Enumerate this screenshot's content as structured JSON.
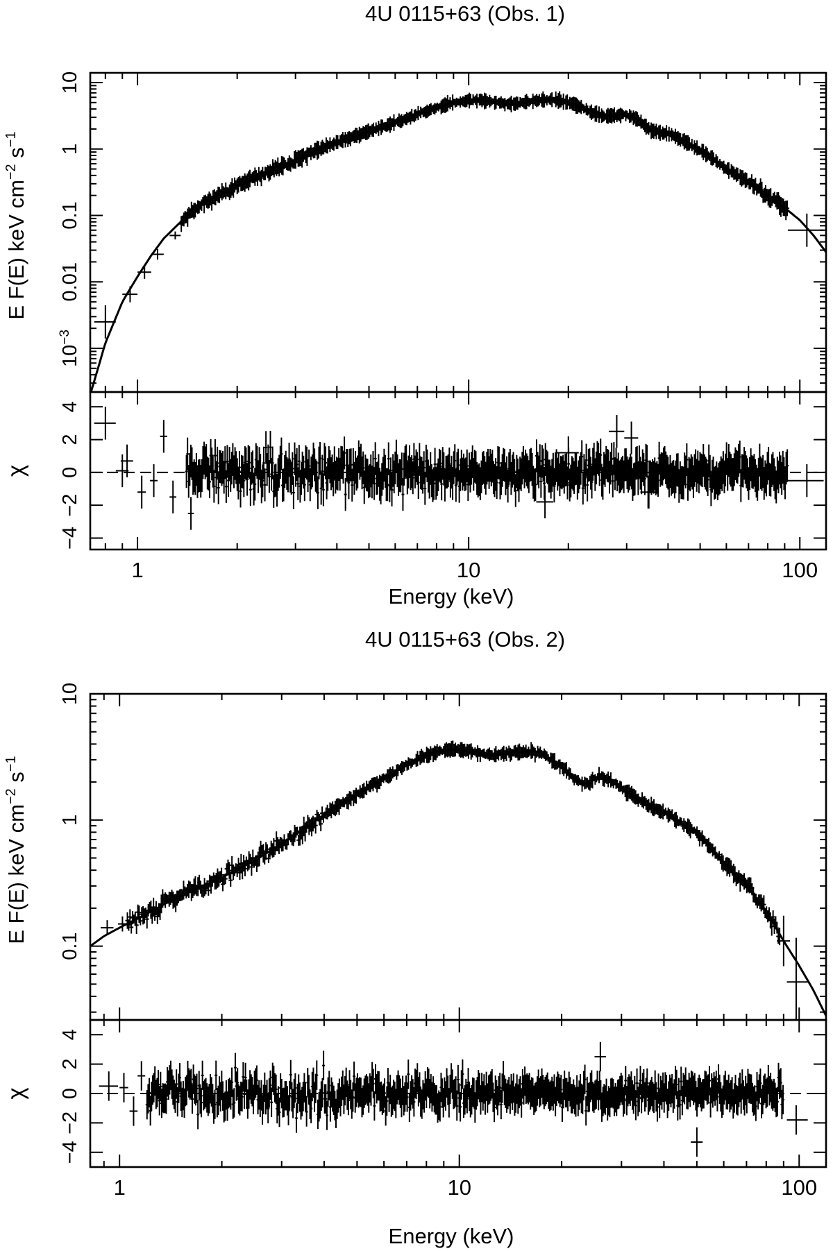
{
  "chart_data": [
    {
      "type": "line",
      "title": "4U 0115+63 (Obs. 1)",
      "xlabel": "Energy (keV)",
      "xscale": "log",
      "xlim": [
        0.72,
        120
      ],
      "xticks": [
        {
          "value": 1,
          "label": "1"
        },
        {
          "value": 10,
          "label": "10"
        },
        {
          "value": 100,
          "label": "100"
        }
      ],
      "spectrum": {
        "ylabel": "E F(E) keV cm−2 s−1",
        "ylabel_parts": {
          "main": "E F(E) keV  cm",
          "exp1": "−2",
          "mid": " s",
          "exp2": "−1"
        },
        "yscale": "log",
        "ylim": [
          0.00022,
          14
        ],
        "yticks": [
          {
            "value": 0.001,
            "label": "10−3",
            "base": "10",
            "exp": "−3"
          },
          {
            "value": 0.01,
            "label": "0.01"
          },
          {
            "value": 0.1,
            "label": "0.1"
          },
          {
            "value": 1,
            "label": "1"
          },
          {
            "value": 10,
            "label": "10"
          }
        ],
        "model": {
          "x": [
            0.72,
            0.8,
            0.9,
            1.0,
            1.1,
            1.2,
            1.35,
            1.5,
            1.75,
            2.0,
            2.5,
            3.0,
            3.5,
            4.0,
            5.0,
            6.0,
            7.0,
            8.0,
            9.0,
            10.0,
            11.0,
            12.0,
            13.0,
            14.0,
            15.0,
            16.0,
            17.0,
            18.0,
            19.0,
            20.0,
            22.0,
            24.0,
            26.0,
            28.0,
            30.0,
            32.0,
            35.0,
            38.0,
            40.0,
            45.0,
            50.0,
            55.0,
            60.0,
            70.0,
            80.0,
            90.0,
            100.0,
            110.0,
            120.0
          ],
          "y": [
            0.0002,
            0.0012,
            0.005,
            0.012,
            0.025,
            0.045,
            0.08,
            0.13,
            0.2,
            0.28,
            0.45,
            0.68,
            0.95,
            1.25,
            1.85,
            2.5,
            3.3,
            4.2,
            5.0,
            5.4,
            5.4,
            5.1,
            4.8,
            4.8,
            5.1,
            5.4,
            5.5,
            5.5,
            5.3,
            5.0,
            4.2,
            3.4,
            3.1,
            3.2,
            3.3,
            2.9,
            2.0,
            1.75,
            1.7,
            1.3,
            0.95,
            0.7,
            0.5,
            0.32,
            0.2,
            0.13,
            0.085,
            0.05,
            0.028
          ]
        },
        "points": [
          {
            "x": 0.8,
            "y": 0.0025,
            "xlo": 0.74,
            "xhi": 0.86,
            "err": 0.25
          },
          {
            "x": 0.95,
            "y": 0.0065,
            "xlo": 0.9,
            "xhi": 1.0,
            "err": 0.12
          },
          {
            "x": 1.05,
            "y": 0.014,
            "xlo": 1.0,
            "xhi": 1.1,
            "err": 0.1
          },
          {
            "x": 1.15,
            "y": 0.026,
            "xlo": 1.1,
            "xhi": 1.2,
            "err": 0.08
          },
          {
            "x": 1.3,
            "y": 0.05,
            "xlo": 1.25,
            "xhi": 1.35,
            "err": 0.06
          },
          {
            "x": 105,
            "y": 0.06,
            "xlo": 92,
            "xhi": 118,
            "err": 0.25
          }
        ],
        "dense_ranges": [
          {
            "from": 1.35,
            "to": 3.6,
            "scatter": 0.07
          },
          {
            "from": 3.6,
            "to": 10,
            "scatter": 0.03
          },
          {
            "from": 10,
            "to": 70,
            "scatter": 0.025
          },
          {
            "from": 70,
            "to": 92,
            "scatter": 0.09
          }
        ]
      },
      "residuals": {
        "ylabel": "χ",
        "ylim": [
          -4.7,
          4.9
        ],
        "yticks": [
          {
            "value": -4,
            "label": "−4"
          },
          {
            "value": -2,
            "label": "−2"
          },
          {
            "value": 0,
            "label": "0"
          },
          {
            "value": 2,
            "label": "2"
          },
          {
            "value": 4,
            "label": "4"
          }
        ],
        "points": [
          {
            "x": 0.8,
            "xlo": 0.74,
            "xhi": 0.86,
            "chi": 3.0
          },
          {
            "x": 0.93,
            "xlo": 0.89,
            "xhi": 0.97,
            "chi": 0.7
          },
          {
            "x": 0.9,
            "xlo": 0.86,
            "xhi": 0.94,
            "chi": 0.1
          },
          {
            "x": 1.03,
            "xlo": 1.0,
            "xhi": 1.06,
            "chi": -1.2
          },
          {
            "x": 1.12,
            "xlo": 1.09,
            "xhi": 1.15,
            "chi": -0.5
          },
          {
            "x": 1.2,
            "xlo": 1.17,
            "xhi": 1.23,
            "chi": 2.2
          },
          {
            "x": 1.28,
            "xlo": 1.25,
            "xhi": 1.31,
            "chi": -1.5
          },
          {
            "x": 1.45,
            "xlo": 1.42,
            "xhi": 1.48,
            "chi": -2.5
          },
          {
            "x": 20,
            "xlo": 18.5,
            "xhi": 21.5,
            "chi": 1.2
          },
          {
            "x": 17,
            "xlo": 16,
            "xhi": 18,
            "chi": -1.8
          },
          {
            "x": 28,
            "xlo": 26.5,
            "xhi": 29.5,
            "chi": 2.5
          },
          {
            "x": 31,
            "xlo": 29.5,
            "xhi": 32.5,
            "chi": 2.1
          },
          {
            "x": 35,
            "xlo": 33,
            "xhi": 37,
            "chi": -1.2
          },
          {
            "x": 105,
            "xlo": 92,
            "xhi": 118,
            "chi": -0.5
          }
        ],
        "dense_ranges": [
          {
            "from": 1.4,
            "to": 3.6,
            "scatter": 1.1
          },
          {
            "from": 3.6,
            "to": 10,
            "scatter": 0.95
          },
          {
            "from": 10,
            "to": 92,
            "scatter": 0.8
          }
        ]
      }
    },
    {
      "type": "line",
      "title": "4U 0115+63 (Obs. 2)",
      "xlabel": "Energy (keV)",
      "xscale": "log",
      "xlim": [
        0.82,
        120
      ],
      "xticks": [
        {
          "value": 1,
          "label": "1"
        },
        {
          "value": 10,
          "label": "10"
        },
        {
          "value": 100,
          "label": "100"
        }
      ],
      "spectrum": {
        "ylabel": "E F(E) keV cm−2 s−1",
        "ylabel_parts": {
          "main": "E F(E) keV  cm",
          "exp1": "−2",
          "mid": " s",
          "exp2": "−1"
        },
        "yscale": "log",
        "ylim": [
          0.026,
          10
        ],
        "yticks": [
          {
            "value": 0.1,
            "label": "0.1"
          },
          {
            "value": 1,
            "label": "1"
          },
          {
            "value": 10,
            "label": "10"
          }
        ],
        "model": {
          "x": [
            0.82,
            0.9,
            1.0,
            1.2,
            1.5,
            2.0,
            2.5,
            3.0,
            3.5,
            4.0,
            5.0,
            6.0,
            7.0,
            8.0,
            9.0,
            10.0,
            11.0,
            12.0,
            13.0,
            14.0,
            15.0,
            16.0,
            17.0,
            18.0,
            19.0,
            20.0,
            21.0,
            22.0,
            23.0,
            24.0,
            25.0,
            26.0,
            27.0,
            28.0,
            30.0,
            33.0,
            36.0,
            40.0,
            45.0,
            50.0,
            55.0,
            60.0,
            70.0,
            80.0,
            90.0,
            100.0,
            110.0,
            120.0
          ],
          "y": [
            0.1,
            0.12,
            0.14,
            0.18,
            0.25,
            0.35,
            0.48,
            0.65,
            0.85,
            1.1,
            1.6,
            2.15,
            2.75,
            3.25,
            3.6,
            3.6,
            3.45,
            3.3,
            3.3,
            3.35,
            3.45,
            3.5,
            3.45,
            3.2,
            2.9,
            2.6,
            2.35,
            2.1,
            1.95,
            1.95,
            2.1,
            2.2,
            2.15,
            2.05,
            1.8,
            1.5,
            1.3,
            1.15,
            0.95,
            0.78,
            0.6,
            0.45,
            0.3,
            0.19,
            0.11,
            0.07,
            0.045,
            0.028
          ]
        },
        "points": [
          {
            "x": 0.92,
            "y": 0.14,
            "xlo": 0.88,
            "xhi": 0.96,
            "err": 0.06
          },
          {
            "x": 1.02,
            "y": 0.15,
            "xlo": 0.99,
            "xhi": 1.05,
            "err": 0.06
          },
          {
            "x": 98,
            "y": 0.052,
            "xlo": 92,
            "xhi": 106,
            "err": 0.35
          },
          {
            "x": 90,
            "y": 0.11,
            "xlo": 86,
            "xhi": 94,
            "err": 0.2
          }
        ],
        "dense_ranges": [
          {
            "from": 1.05,
            "to": 4.0,
            "scatter": 0.08
          },
          {
            "from": 4.0,
            "to": 10.5,
            "scatter": 0.025
          },
          {
            "from": 10.5,
            "to": 60,
            "scatter": 0.03
          },
          {
            "from": 60,
            "to": 88,
            "scatter": 0.08
          }
        ]
      },
      "residuals": {
        "ylabel": "χ",
        "ylim": [
          -5.0,
          5.0
        ],
        "yticks": [
          {
            "value": -4,
            "label": "−4"
          },
          {
            "value": -2,
            "label": "−2"
          },
          {
            "value": 0,
            "label": "0"
          },
          {
            "value": 2,
            "label": "2"
          },
          {
            "value": 4,
            "label": "4"
          }
        ],
        "points": [
          {
            "x": 0.93,
            "xlo": 0.87,
            "xhi": 0.99,
            "chi": 0.5
          },
          {
            "x": 1.03,
            "xlo": 1.0,
            "xhi": 1.06,
            "chi": 0.4
          },
          {
            "x": 1.1,
            "xlo": 1.07,
            "xhi": 1.13,
            "chi": -1.2
          },
          {
            "x": 1.16,
            "xlo": 1.13,
            "xhi": 1.19,
            "chi": 1.2
          },
          {
            "x": 50,
            "xlo": 48,
            "xhi": 52,
            "chi": -3.3
          },
          {
            "x": 98,
            "xlo": 92,
            "xhi": 106,
            "chi": -1.8
          },
          {
            "x": 26,
            "xlo": 25,
            "xhi": 27,
            "chi": 2.5
          }
        ],
        "dense_ranges": [
          {
            "from": 1.2,
            "to": 4.0,
            "scatter": 1.25
          },
          {
            "from": 4.0,
            "to": 10.5,
            "scatter": 1.1
          },
          {
            "from": 10.5,
            "to": 90,
            "scatter": 0.9
          }
        ]
      }
    }
  ]
}
